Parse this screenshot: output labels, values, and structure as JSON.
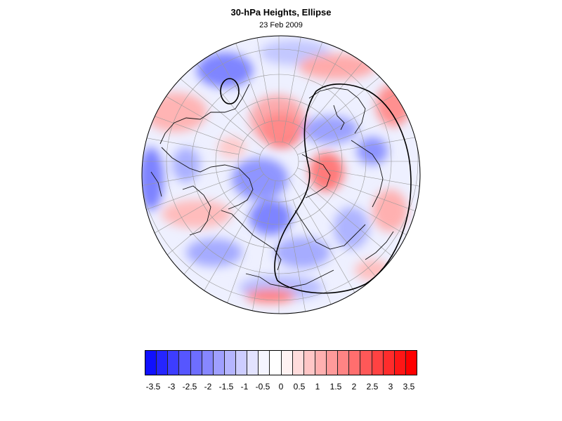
{
  "map": {
    "title": "30-hPa Heights, Ellipse",
    "date": "23 Feb 2009",
    "projection": "polar-stereographic-north",
    "colors": {
      "negative": "#0000ff",
      "positive": "#ff0000",
      "neutral": "#ffffff",
      "outline": "#000000"
    }
  },
  "legend": {
    "ticks": [
      "-3.5",
      "-3",
      "-2.5",
      "-2",
      "-1.5",
      "-1",
      "-0.5",
      "0",
      "0.5",
      "1",
      "1.5",
      "2",
      "2.5",
      "3",
      "3.5"
    ],
    "colors": [
      "#1010ff",
      "#2525ff",
      "#3d3dff",
      "#5656ff",
      "#6e6eff",
      "#8787ff",
      "#9f9fff",
      "#b5b5ff",
      "#cdcdff",
      "#e3e3ff",
      "#f4f4ff",
      "#ffffff",
      "#fff2f2",
      "#ffdcdc",
      "#ffc6c6",
      "#ffb0b0",
      "#ff9a9a",
      "#ff8484",
      "#ff6e6e",
      "#ff5858",
      "#ff4242",
      "#ff2c2c",
      "#ff1616",
      "#ff0000"
    ]
  }
}
